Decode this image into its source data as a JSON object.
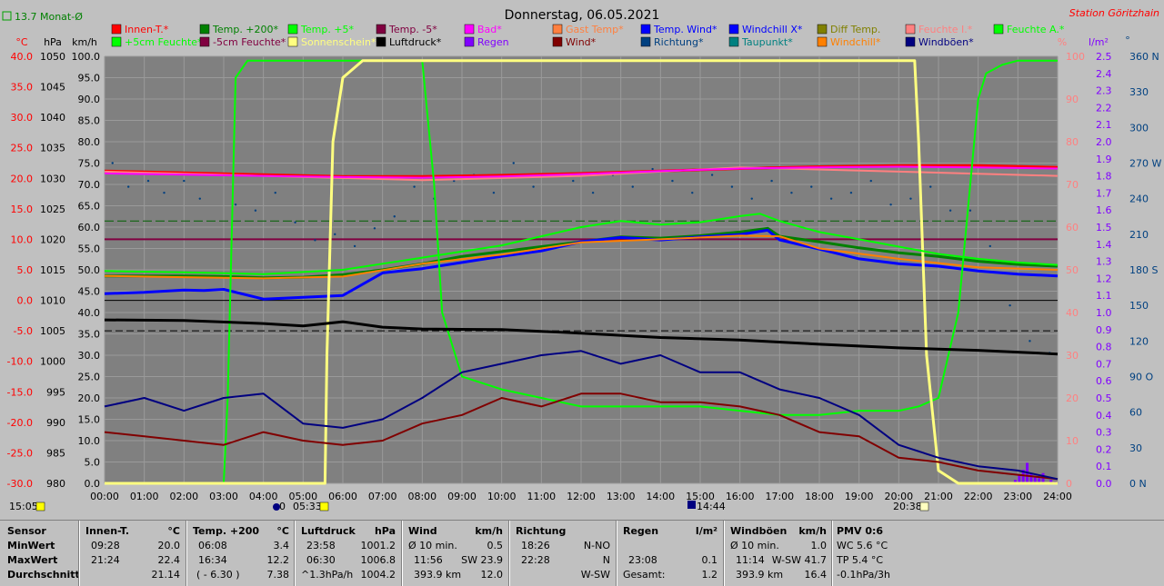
{
  "title": "Donnerstag, 06.05.2021",
  "station": "Station Göritzhain",
  "top_left": "13.7 Monat-Ø",
  "axes": {
    "celsius_unit": "°C",
    "hpa_unit": "hPa",
    "kmh_unit": "km/h",
    "pct_unit": "%",
    "rain_unit": "l/m²",
    "deg_unit": "°",
    "celsius_ticks": [
      "40.0",
      "35.0",
      "30.0",
      "25.0",
      "20.0",
      "15.0",
      "10.0",
      "5.0",
      "0.0",
      "-5.0",
      "-10.0",
      "-15.0",
      "-20.0",
      "-25.0",
      "-30.0"
    ],
    "hpa_ticks": [
      "1050",
      "1045",
      "1040",
      "1035",
      "1030",
      "1025",
      "1020",
      "1015",
      "1010",
      "1005",
      "1000",
      "995",
      "990",
      "985",
      "980"
    ],
    "kmh_ticks": [
      "100.0",
      "95.0",
      "90.0",
      "85.0",
      "80.0",
      "75.0",
      "70.0",
      "65.0",
      "60.0",
      "55.0",
      "50.0",
      "45.0",
      "40.0",
      "35.0",
      "30.0",
      "25.0",
      "20.0",
      "15.0",
      "10.0",
      "5.0",
      "0.0"
    ],
    "pct_ticks": [
      "100",
      "90",
      "80",
      "70",
      "60",
      "50",
      "40",
      "30",
      "20",
      "10",
      "0"
    ],
    "rain_ticks": [
      "2.5",
      "2.4",
      "2.3",
      "2.2",
      "2.1",
      "2.0",
      "1.9",
      "1.8",
      "1.7",
      "1.6",
      "1.5",
      "1.4",
      "1.3",
      "1.2",
      "1.1",
      "1.0",
      "0.9",
      "0.8",
      "0.7",
      "0.6",
      "0.5",
      "0.4",
      "0.3",
      "0.2",
      "0.1",
      "0.0"
    ],
    "dir_ticks": [
      "360 N",
      "330",
      "300",
      "270 W",
      "240",
      "210",
      "180 S",
      "150",
      "120",
      "90 O",
      "60",
      "30",
      "0 N"
    ],
    "time_ticks": [
      "00:00",
      "01:00",
      "02:00",
      "03:00",
      "04:00",
      "05:00",
      "06:00",
      "07:00",
      "08:00",
      "09:00",
      "10:00",
      "11:00",
      "12:00",
      "13:00",
      "14:00",
      "15:00",
      "16:00",
      "17:00",
      "18:00",
      "19:00",
      "20:00",
      "21:00",
      "22:00",
      "23:00",
      "24:00"
    ]
  },
  "sun_markers": {
    "now": "15:05",
    "sunrise": "05:33",
    "sunrise_prefix": "04:",
    "moon_time": "14:44",
    "sunset": "20:38"
  },
  "legend": [
    {
      "label": "Innen-T.*",
      "color": "#ff0000"
    },
    {
      "label": "Temp. +200*",
      "color": "#008000"
    },
    {
      "label": "Temp. +5*",
      "color": "#00ff00"
    },
    {
      "label": "Temp. -5*",
      "color": "#800040"
    },
    {
      "label": "Bad*",
      "color": "#ff00ff"
    },
    {
      "label": "Gast Temp*",
      "color": "#ff8040"
    },
    {
      "label": "Temp. Wind*",
      "color": "#0000ff"
    },
    {
      "label": "Windchill X*",
      "color": "#0000ff"
    },
    {
      "label": "Diff Temp.",
      "color": "#808000"
    },
    {
      "label": "Feuchte I.*",
      "color": "#ff8080"
    },
    {
      "label": "Feuchte A.*",
      "color": "#00ff00"
    },
    {
      "label": "+5cm Feuchte*",
      "color": "#00ff00"
    },
    {
      "label": "-5cm Feuchte*",
      "color": "#800040"
    },
    {
      "label": "Sonnenschein*",
      "color": "#ffff80"
    },
    {
      "label": "Luftdruck*",
      "color": "#000000"
    },
    {
      "label": "Regen",
      "color": "#8000ff"
    },
    {
      "label": "Wind*",
      "color": "#800000"
    },
    {
      "label": "Richtung*",
      "color": "#004080"
    },
    {
      "label": "Taupunkt*",
      "color": "#008080"
    },
    {
      "label": "Windchill*",
      "color": "#ff8000"
    },
    {
      "label": "Windböen*",
      "color": "#000080"
    }
  ],
  "chart_data": {
    "type": "line",
    "title": "Donnerstag, 06.05.2021",
    "x_unit": "time of day (hours)",
    "xlim": [
      0,
      24
    ],
    "ylim_celsius": [
      -30,
      40
    ],
    "ylim_hpa": [
      980,
      1050
    ],
    "ylim_kmh": [
      0,
      100
    ],
    "ylim_pct": [
      0,
      100
    ],
    "ylim_rain": [
      0,
      2.5
    ],
    "ylim_dir": [
      0,
      360
    ],
    "series": [
      {
        "name": "Innen-T.*",
        "axis": "celsius",
        "color": "#ff0000",
        "width": 3,
        "x": [
          0,
          2,
          4,
          6,
          8,
          10,
          12,
          14,
          16,
          18,
          20,
          22,
          24
        ],
        "y": [
          21.2,
          20.9,
          20.6,
          20.3,
          20.3,
          20.5,
          20.8,
          21.2,
          21.6,
          21.9,
          22.1,
          22.1,
          21.8
        ]
      },
      {
        "name": "Feuchte I.*",
        "axis": "pct",
        "color": "#ff8080",
        "width": 2,
        "x": [
          0,
          4,
          8,
          12,
          16,
          20,
          24
        ],
        "y": [
          73,
          72,
          71,
          72,
          74,
          73,
          72
        ]
      },
      {
        "name": "Bad*",
        "axis": "celsius",
        "color": "#ff00ff",
        "width": 2,
        "x": [
          0,
          2,
          4,
          6,
          8,
          10,
          12,
          14,
          16,
          18,
          20,
          22,
          24
        ],
        "y": [
          20.8,
          20.6,
          20.4,
          20.2,
          20.1,
          20.3,
          20.7,
          21.2,
          21.6,
          21.8,
          21.9,
          21.8,
          21.6
        ]
      },
      {
        "name": "Temp. +200*",
        "axis": "celsius",
        "color": "#008000",
        "width": 3,
        "x": [
          0,
          1,
          2,
          3,
          4,
          5,
          6,
          7,
          8,
          9,
          10,
          11,
          12,
          13,
          14,
          15,
          16,
          16.7,
          17,
          18,
          19,
          20,
          21,
          22,
          23,
          24
        ],
        "y": [
          4.0,
          4.0,
          4.0,
          3.9,
          3.7,
          3.8,
          4.2,
          5.0,
          6.0,
          7.2,
          8.0,
          8.8,
          9.6,
          10.4,
          10.2,
          10.6,
          11.2,
          11.8,
          10.5,
          9.6,
          8.6,
          7.8,
          7.2,
          6.4,
          5.9,
          5.6
        ]
      },
      {
        "name": "Temp. Wind*",
        "axis": "celsius",
        "color": "#0000ff",
        "width": 3,
        "x": [
          0,
          1,
          2,
          2.5,
          3,
          4,
          5,
          6,
          7,
          8,
          9,
          10,
          11,
          12,
          13,
          14,
          15,
          16,
          16.7,
          17,
          18,
          19,
          20,
          21,
          22,
          23,
          24
        ],
        "y": [
          1.1,
          1.3,
          1.7,
          1.6,
          1.8,
          0.2,
          0.5,
          0.8,
          4.5,
          5.2,
          6.2,
          7.2,
          8.1,
          9.6,
          10.3,
          9.9,
          10.4,
          10.8,
          11.5,
          9.9,
          8.4,
          6.8,
          6.0,
          5.6,
          4.8,
          4.3,
          4.0
        ]
      },
      {
        "name": "Windchill*",
        "axis": "celsius",
        "color": "#ff8000",
        "width": 2,
        "x": [
          0,
          2,
          4,
          6,
          8,
          10,
          12,
          14,
          16,
          17,
          18,
          20,
          22,
          24
        ],
        "y": [
          4.0,
          3.8,
          3.6,
          3.9,
          6.0,
          7.5,
          9.5,
          10.0,
          10.6,
          10.5,
          8.5,
          6.8,
          5.4,
          5.0
        ]
      },
      {
        "name": "Feuchte A.*",
        "axis": "pct",
        "color": "#00ff00",
        "width": 2,
        "x": [
          0,
          3,
          3.1,
          3.3,
          3.6,
          4,
          8,
          8.3,
          8.5,
          9,
          10,
          11,
          12,
          13,
          14,
          15,
          16,
          17,
          18,
          19,
          20,
          20.5,
          21,
          21.5,
          22,
          22.2,
          22.4,
          22.6,
          23,
          24
        ],
        "y": [
          0,
          0,
          20,
          95,
          99,
          99,
          99,
          70,
          40,
          25,
          22,
          20,
          18,
          18,
          18,
          18,
          17,
          16,
          16,
          17,
          17,
          18,
          20,
          40,
          90,
          96,
          97,
          98,
          99,
          99
        ]
      },
      {
        "name": "Sonnenschein*",
        "axis": "pct",
        "color": "#ffff80",
        "width": 3,
        "x": [
          0,
          5.55,
          5.6,
          5.75,
          6,
          6.5,
          8,
          20.4,
          20.5,
          20.7,
          21,
          21.5,
          24
        ],
        "y": [
          0,
          0,
          30,
          80,
          95,
          99,
          99,
          99,
          80,
          30,
          3,
          0,
          0
        ]
      },
      {
        "name": "Luftdruck*",
        "axis": "hpa",
        "color": "#000000",
        "width": 3,
        "x": [
          0,
          2,
          4,
          5,
          6,
          7,
          8,
          10,
          12,
          14,
          16,
          18,
          20,
          22,
          24
        ],
        "y": [
          1006.8,
          1006.7,
          1006.2,
          1005.8,
          1006.5,
          1005.6,
          1005.3,
          1005.2,
          1004.6,
          1003.9,
          1003.5,
          1002.8,
          1002.2,
          1001.8,
          1001.2
        ]
      },
      {
        "name": "Temp. +5*",
        "axis": "celsius",
        "color": "#00ff00",
        "width": 2,
        "x": [
          0,
          2,
          4,
          6,
          8,
          10,
          11,
          12,
          13,
          14,
          15,
          16,
          16.5,
          17,
          18,
          19,
          20,
          21,
          22,
          23,
          24
        ],
        "y": [
          4.8,
          4.6,
          4.3,
          5.0,
          7.0,
          9.0,
          10.5,
          12.0,
          13.0,
          12.4,
          12.8,
          13.8,
          14.2,
          13.0,
          11.2,
          10.0,
          8.8,
          7.6,
          6.8,
          6.2,
          5.8
        ]
      },
      {
        "name": "Wind*",
        "axis": "kmh",
        "color": "#800000",
        "width": 2,
        "x": [
          0,
          1,
          2,
          3,
          4,
          5,
          6,
          7,
          8,
          9,
          10,
          11,
          12,
          13,
          14,
          15,
          16,
          17,
          18,
          19,
          20,
          21,
          22,
          23,
          24
        ],
        "y": [
          12,
          11,
          10,
          9,
          12,
          10,
          9,
          10,
          14,
          16,
          20,
          18,
          21,
          21,
          19,
          19,
          18,
          16,
          12,
          11,
          6,
          5,
          3,
          2,
          1
        ]
      },
      {
        "name": "Windböen*",
        "axis": "kmh",
        "color": "#000080",
        "width": 2,
        "x": [
          0,
          1,
          2,
          3,
          4,
          5,
          6,
          7,
          8,
          9,
          10,
          11,
          12,
          13,
          14,
          15,
          16,
          17,
          18,
          19,
          20,
          21,
          22,
          23,
          24
        ],
        "y": [
          18,
          20,
          17,
          20,
          21,
          14,
          13,
          15,
          20,
          26,
          28,
          30,
          31,
          28,
          30,
          26,
          26,
          22,
          20,
          16,
          9,
          6,
          4,
          3,
          1
        ]
      }
    ],
    "scatter": [
      {
        "name": "Richtung*",
        "axis": "dir",
        "color": "#004080",
        "x": [
          0.2,
          0.6,
          1.1,
          1.5,
          2.0,
          2.4,
          2.9,
          3.3,
          3.8,
          4.3,
          4.8,
          5.3,
          5.8,
          6.3,
          6.8,
          7.3,
          7.8,
          8.3,
          8.8,
          9.3,
          9.8,
          10.3,
          10.8,
          11.3,
          11.8,
          12.3,
          12.8,
          13.3,
          13.8,
          14.3,
          14.8,
          15.3,
          15.8,
          16.3,
          16.8,
          17.3,
          17.8,
          18.3,
          18.8,
          19.3,
          19.8,
          20.3,
          20.8,
          21.3,
          21.8,
          22.3,
          22.8,
          23.3,
          23.8
        ],
        "y": [
          270,
          250,
          255,
          245,
          255,
          240,
          260,
          235,
          230,
          245,
          220,
          205,
          210,
          200,
          215,
          225,
          250,
          240,
          255,
          260,
          245,
          270,
          250,
          260,
          255,
          245,
          260,
          250,
          265,
          255,
          245,
          260,
          250,
          240,
          255,
          245,
          250,
          240,
          245,
          255,
          235,
          240,
          250,
          230,
          230,
          200,
          150,
          120,
          110
        ]
      }
    ]
  },
  "stats": {
    "sensor": {
      "title": "Sensor",
      "rows": [
        "MinWert",
        "MaxWert",
        "Durchschnitt"
      ]
    },
    "innen": {
      "title": "Innen-T.",
      "unit": "°C",
      "r1a": "09:28",
      "r1b": "20.0",
      "r2a": "21:24",
      "r2b": "22.4",
      "r3a": "",
      "r3b": "21.14"
    },
    "temp": {
      "title": "Temp. +200",
      "unit": "°C",
      "r1a": "06:08",
      "r1b": "3.4",
      "r2a": "16:34",
      "r2b": "12.2",
      "r3a": "( - 6.30 )",
      "r3b": "7.38"
    },
    "druck": {
      "title": "Luftdruck",
      "unit": "hPa",
      "r1a": "23:58",
      "r1b": "1001.2",
      "r2a": "06:30",
      "r2b": "1006.8",
      "r3a": "^1.3hPa/h",
      "r3b": "1004.2"
    },
    "wind": {
      "title": "Wind",
      "unit": "km/h",
      "r1a": "Ø 10 min.",
      "r1b": "0.5",
      "r2a": "11:56",
      "r2m": "SW 23.9",
      "r3a": "393.9 km",
      "r3b": "12.0"
    },
    "richtung": {
      "title": "Richtung",
      "r1a": "18:26",
      "r1b": "N-NO",
      "r2a": "22:28",
      "r2b": "N",
      "r3b": "W-SW"
    },
    "regen": {
      "title": "Regen",
      "unit": "l/m²",
      "r2a": "23:08",
      "r2b": "0.1",
      "r3a": "Gesamt:",
      "r3b": "1.2"
    },
    "boeen": {
      "title": "Windböen",
      "unit": "km/h",
      "r1a": "Ø 10 min.",
      "r1b": "1.0",
      "r2a": "11:14",
      "r2b": "W-SW 41.7",
      "r3a": "393.9 km",
      "r3b": "16.4"
    },
    "pmv": {
      "title": "PMV 0:6",
      "r1": "WC 5.6 °C",
      "r2": "TP 5.4 °C",
      "r3": "-0.1hPa/3h"
    }
  }
}
